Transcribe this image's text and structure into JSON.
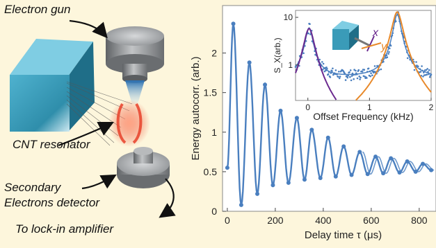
{
  "schematic": {
    "labels": {
      "electron_gun": "Electron gun",
      "cnt_resonator": "CNT resonator",
      "detector_line1": "Secondary",
      "detector_line2": "Electrons detector",
      "lockin": "To  lock-in amplifier"
    },
    "colors": {
      "block": "#3a9bb8",
      "metal": "#8a8d90",
      "resonator_glow": "#e8412a",
      "background": "#fdf6dc"
    }
  },
  "chart_data": [
    {
      "type": "line",
      "xlabel": "Delay time τ (μs)",
      "ylabel": "Energy autocorr. (arb.)",
      "xlim": [
        -20,
        870
      ],
      "ylim": [
        0,
        2.6
      ],
      "xticks": [
        0,
        200,
        400,
        600,
        800
      ],
      "yticks": [
        0,
        0.5,
        1,
        1.5,
        2
      ],
      "ytick_labels": [
        "0",
        "0.5",
        "1",
        "1.5",
        "2"
      ],
      "grid": false,
      "series_color": "#4a7fbf",
      "peak_points": [
        {
          "x": 25,
          "y": 2.37
        },
        {
          "x": 92,
          "y": 1.88
        },
        {
          "x": 157,
          "y": 1.6
        },
        {
          "x": 222,
          "y": 1.27
        },
        {
          "x": 290,
          "y": 1.18
        },
        {
          "x": 352,
          "y": 1.03
        },
        {
          "x": 420,
          "y": 0.93
        },
        {
          "x": 485,
          "y": 0.82
        },
        {
          "x": 552,
          "y": 0.75
        },
        {
          "x": 618,
          "y": 0.69
        },
        {
          "x": 682,
          "y": 0.67
        },
        {
          "x": 750,
          "y": 0.63
        },
        {
          "x": 815,
          "y": 0.6
        }
      ],
      "trough_points": [
        {
          "x": 0,
          "y": 0.55
        },
        {
          "x": 58,
          "y": 0.08
        },
        {
          "x": 125,
          "y": 0.22
        },
        {
          "x": 190,
          "y": 0.33
        },
        {
          "x": 255,
          "y": 0.36
        },
        {
          "x": 322,
          "y": 0.4
        },
        {
          "x": 388,
          "y": 0.42
        },
        {
          "x": 452,
          "y": 0.44
        },
        {
          "x": 518,
          "y": 0.46
        },
        {
          "x": 585,
          "y": 0.47
        },
        {
          "x": 650,
          "y": 0.48
        },
        {
          "x": 718,
          "y": 0.49
        },
        {
          "x": 785,
          "y": 0.5
        },
        {
          "x": 850,
          "y": 0.52
        }
      ]
    },
    {
      "type": "scatter",
      "xlabel": "Offset Frequency (kHz)",
      "ylabel": "S_X(arb.)",
      "y_scale": "log",
      "xlim": [
        -0.2,
        2.0
      ],
      "ylim": [
        0.18,
        14
      ],
      "xticks": [
        0,
        1,
        2
      ],
      "yticks": [
        1,
        10
      ],
      "ytick_labels": [
        "1",
        "10"
      ],
      "legend_axes": [
        "x",
        "y"
      ],
      "axis_colors": {
        "x": "#6b2a8f",
        "y": "#e8892a"
      },
      "series": [
        {
          "type": "scatter",
          "color": "#4a7fbf",
          "peaks_khz": [
            0.02,
            1.45
          ],
          "peak_values": [
            5.5,
            11
          ],
          "baseline": 0.52
        },
        {
          "type": "line",
          "color": "#6b2a8f",
          "center_khz": 0.02,
          "peak": 5.8
        },
        {
          "type": "line",
          "color": "#e8892a",
          "center_khz": 1.45,
          "peak": 13
        }
      ]
    }
  ]
}
